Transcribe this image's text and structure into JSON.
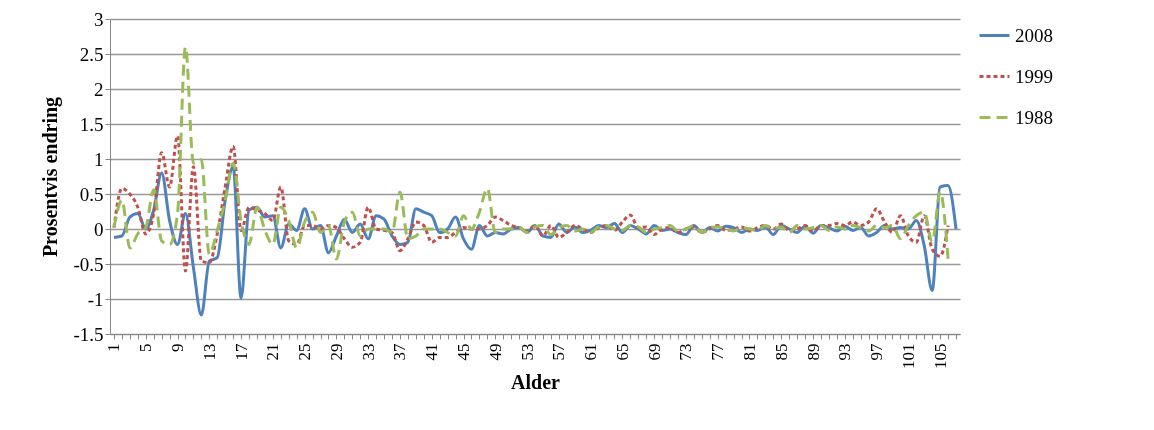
{
  "chart_data": {
    "type": "line",
    "xlabel": "Alder",
    "ylabel": "Prosentvis endring",
    "categories": [
      "1",
      null,
      null,
      null,
      "5",
      null,
      null,
      null,
      "9",
      null,
      null,
      null,
      "13",
      null,
      null,
      null,
      "17",
      null,
      null,
      null,
      "21",
      null,
      null,
      null,
      "25",
      null,
      null,
      null,
      "29",
      null,
      null,
      null,
      "33",
      null,
      null,
      null,
      "37",
      null,
      null,
      null,
      "41",
      null,
      null,
      null,
      "45",
      null,
      null,
      null,
      "49",
      null,
      null,
      null,
      "53",
      null,
      null,
      null,
      "57",
      null,
      null,
      null,
      "61",
      null,
      null,
      null,
      "65",
      null,
      null,
      null,
      "69",
      null,
      null,
      null,
      "73",
      null,
      null,
      null,
      "77",
      null,
      null,
      null,
      "81",
      null,
      null,
      null,
      "85",
      null,
      null,
      null,
      "89",
      null,
      null,
      null,
      "93",
      null,
      null,
      null,
      "97",
      null,
      null,
      null,
      "101",
      null,
      null,
      null,
      "105",
      null,
      null
    ],
    "ylim": [
      -1.5,
      3
    ],
    "yticks": [
      -1.5,
      -1,
      -0.5,
      0,
      0.5,
      1,
      1.5,
      2,
      2.5,
      3
    ],
    "grid": "y",
    "legend": "right",
    "series": [
      {
        "name": "2008",
        "color": "#4f81bd",
        "line_style": "solid",
        "values": [
          -0.12,
          -0.1,
          0.17,
          0.22,
          0,
          0.27,
          0.8,
          0.12,
          -0.22,
          0.22,
          -0.55,
          -1.23,
          -0.46,
          -0.41,
          0.41,
          0.89,
          -0.99,
          0.27,
          0.31,
          0.17,
          0.19,
          -0.27,
          0.07,
          -0.02,
          0.29,
          0,
          0.05,
          -0.34,
          -0.1,
          0.14,
          -0.05,
          0.07,
          -0.14,
          0.19,
          0.14,
          -0.1,
          -0.22,
          -0.19,
          0.29,
          0.24,
          0.19,
          -0.05,
          0,
          0.17,
          -0.14,
          -0.29,
          0.05,
          -0.1,
          -0.05,
          -0.07,
          0,
          0.02,
          -0.05,
          0.05,
          -0.1,
          -0.12,
          0.07,
          -0.05,
          0.03,
          -0.05,
          -0.02,
          0.05,
          0.02,
          0.08,
          -0.05,
          0.05,
          0,
          -0.07,
          0.05,
          -0.02,
          0,
          -0.05,
          -0.08,
          0.05,
          -0.05,
          0.02,
          -0.03,
          0.04,
          0.02,
          -0.05,
          0,
          -0.02,
          0.03,
          -0.08,
          0.05,
          0,
          -0.05,
          0.04,
          -0.06,
          0.05,
          0.02,
          -0.03,
          0.04,
          -0.02,
          0.02,
          -0.1,
          -0.05,
          0.05,
          0,
          0.02,
          0,
          0.12,
          -0.24,
          -0.88,
          0.6,
          0.62,
          0
        ]
      },
      {
        "name": "1999",
        "color": "#c0504d",
        "line_style": "dashed",
        "values": [
          0.02,
          0.58,
          0.5,
          0.31,
          -0.07,
          0.22,
          1.09,
          0.6,
          1.33,
          -0.6,
          0.89,
          -0.46,
          -0.48,
          -0.07,
          0.6,
          1.18,
          -0.02,
          0.31,
          0.27,
          0.22,
          0.12,
          0.6,
          -0.17,
          -0.22,
          0.05,
          0.05,
          0,
          0.05,
          0.02,
          -0.14,
          -0.26,
          -0.19,
          0.31,
          0,
          -0.02,
          -0.05,
          -0.31,
          -0.14,
          0.1,
          0.05,
          -0.19,
          -0.12,
          -0.12,
          -0.05,
          0.02,
          0,
          0,
          0.05,
          0.17,
          0.12,
          0.05,
          0.02,
          -0.03,
          0.05,
          -0.1,
          0.05,
          -0.12,
          -0.05,
          0.05,
          0,
          -0.05,
          0.02,
          0.05,
          -0.02,
          0.1,
          0.2,
          0.02,
          0.03,
          -0.08,
          0,
          0.02,
          -0.05,
          0,
          0.03,
          -0.05,
          0,
          0.05,
          -0.02,
          0,
          0.03,
          -0.03,
          0.02,
          0.05,
          0,
          0.07,
          -0.02,
          0,
          0.05,
          -0.03,
          0.05,
          0.05,
          0.08,
          0.05,
          0.1,
          0.05,
          0.1,
          0.29,
          0.1,
          -0.05,
          0.19,
          -0.1,
          -0.19,
          0.19,
          -0.29,
          -0.39,
          0.05,
          null
        ]
      },
      {
        "name": "1988",
        "color": "#9bbb59",
        "line_style": "longdash",
        "values": [
          0.02,
          0.41,
          -0.27,
          -0.07,
          0.02,
          0.56,
          -0.17,
          -0.22,
          0.22,
          2.6,
          0.94,
          0.99,
          -0.36,
          -0.02,
          0.41,
          0.94,
          0.12,
          -0.22,
          0.31,
          -0.02,
          -0.22,
          0.31,
          0.12,
          -0.27,
          0.1,
          0.24,
          -0.05,
          0.05,
          -0.43,
          0.1,
          0.24,
          -0.1,
          0,
          0,
          0,
          -0.05,
          0.53,
          -0.14,
          -0.1,
          0,
          0,
          0,
          -0.05,
          -0.1,
          0.19,
          0,
          0.24,
          0.58,
          -0.05,
          0,
          0,
          0.02,
          -0.05,
          0.03,
          0.05,
          -0.08,
          0.02,
          0.05,
          -0.03,
          0,
          -0.05,
          0.03,
          0.05,
          0,
          -0.02,
          0.05,
          0.03,
          -0.05,
          0,
          0.02,
          0.05,
          -0.03,
          0,
          0.05,
          -0.05,
          0.02,
          0.03,
          0,
          -0.03,
          0.02,
          0,
          -0.02,
          0.05,
          0,
          0.03,
          -0.05,
          0.05,
          0,
          0.02,
          0.05,
          -0.02,
          0.03,
          0,
          0.05,
          0.02,
          -0.03,
          0.05,
          0.02,
          0.05,
          -0.14,
          0.05,
          0.19,
          0.24,
          -0.19,
          0.53,
          -0.43,
          null
        ]
      }
    ]
  }
}
